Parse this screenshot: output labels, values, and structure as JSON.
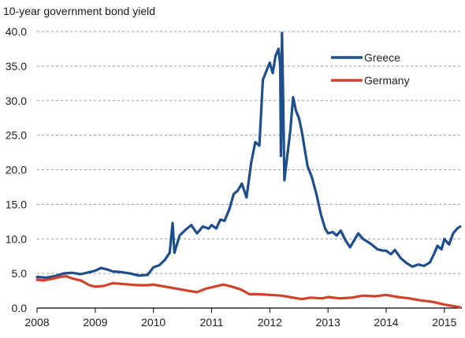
{
  "chart_data": {
    "type": "line",
    "title": "10-year government bond yield",
    "xlabel": "",
    "ylabel": "",
    "xlim": [
      2008.0,
      2015.3
    ],
    "ylim": [
      0,
      40
    ],
    "grid": true,
    "legend_position": "upper-right",
    "x_ticks": [
      "2008",
      "2009",
      "2010",
      "2011",
      "2012",
      "2013",
      "2014",
      "2015"
    ],
    "y_ticks": [
      "0.0",
      "5.0",
      "10.0",
      "15.0",
      "20.0",
      "25.0",
      "30.0",
      "35.0",
      "40.0"
    ],
    "series": [
      {
        "name": "Greece",
        "color": "#1f4e8c",
        "points": [
          [
            2008.0,
            4.5
          ],
          [
            2008.15,
            4.4
          ],
          [
            2008.3,
            4.6
          ],
          [
            2008.45,
            5.0
          ],
          [
            2008.6,
            5.1
          ],
          [
            2008.75,
            4.9
          ],
          [
            2008.9,
            5.2
          ],
          [
            2009.0,
            5.4
          ],
          [
            2009.1,
            5.8
          ],
          [
            2009.2,
            5.6
          ],
          [
            2009.3,
            5.3
          ],
          [
            2009.45,
            5.2
          ],
          [
            2009.6,
            5.0
          ],
          [
            2009.75,
            4.7
          ],
          [
            2009.9,
            4.8
          ],
          [
            2010.0,
            5.9
          ],
          [
            2010.1,
            6.2
          ],
          [
            2010.2,
            7.0
          ],
          [
            2010.28,
            8.0
          ],
          [
            2010.33,
            12.3
          ],
          [
            2010.36,
            8.0
          ],
          [
            2010.45,
            10.5
          ],
          [
            2010.55,
            11.3
          ],
          [
            2010.65,
            12.0
          ],
          [
            2010.75,
            10.8
          ],
          [
            2010.85,
            11.8
          ],
          [
            2010.95,
            11.5
          ],
          [
            2011.0,
            12.0
          ],
          [
            2011.08,
            11.5
          ],
          [
            2011.15,
            12.8
          ],
          [
            2011.22,
            12.6
          ],
          [
            2011.3,
            14.2
          ],
          [
            2011.38,
            16.5
          ],
          [
            2011.45,
            17.0
          ],
          [
            2011.52,
            18.0
          ],
          [
            2011.6,
            16.0
          ],
          [
            2011.68,
            21.0
          ],
          [
            2011.75,
            24.0
          ],
          [
            2011.82,
            23.5
          ],
          [
            2011.88,
            33.0
          ],
          [
            2011.95,
            34.5
          ],
          [
            2012.0,
            35.5
          ],
          [
            2012.05,
            34.0
          ],
          [
            2012.1,
            36.5
          ],
          [
            2012.15,
            37.5
          ],
          [
            2012.18,
            35.0
          ],
          [
            2012.19,
            22.0
          ],
          [
            2012.21,
            39.8
          ],
          [
            2012.23,
            30.0
          ],
          [
            2012.25,
            18.5
          ],
          [
            2012.3,
            22.0
          ],
          [
            2012.35,
            25.5
          ],
          [
            2012.4,
            30.5
          ],
          [
            2012.45,
            28.5
          ],
          [
            2012.5,
            27.5
          ],
          [
            2012.55,
            25.5
          ],
          [
            2012.6,
            23.0
          ],
          [
            2012.65,
            20.5
          ],
          [
            2012.72,
            19.0
          ],
          [
            2012.8,
            16.5
          ],
          [
            2012.88,
            13.5
          ],
          [
            2012.95,
            11.5
          ],
          [
            2013.0,
            10.8
          ],
          [
            2013.08,
            11.0
          ],
          [
            2013.15,
            10.5
          ],
          [
            2013.22,
            11.2
          ],
          [
            2013.3,
            9.8
          ],
          [
            2013.38,
            8.8
          ],
          [
            2013.45,
            9.8
          ],
          [
            2013.52,
            10.8
          ],
          [
            2013.6,
            10.0
          ],
          [
            2013.68,
            9.6
          ],
          [
            2013.75,
            9.2
          ],
          [
            2013.85,
            8.5
          ],
          [
            2013.95,
            8.3
          ],
          [
            2014.0,
            8.3
          ],
          [
            2014.08,
            7.8
          ],
          [
            2014.15,
            8.4
          ],
          [
            2014.25,
            7.2
          ],
          [
            2014.35,
            6.5
          ],
          [
            2014.45,
            6.0
          ],
          [
            2014.55,
            6.3
          ],
          [
            2014.65,
            6.1
          ],
          [
            2014.75,
            6.6
          ],
          [
            2014.82,
            7.8
          ],
          [
            2014.88,
            9.0
          ],
          [
            2014.95,
            8.5
          ],
          [
            2015.0,
            10.0
          ],
          [
            2015.08,
            9.2
          ],
          [
            2015.15,
            10.8
          ],
          [
            2015.22,
            11.5
          ],
          [
            2015.27,
            11.8
          ]
        ]
      },
      {
        "name": "Germany",
        "color": "#d0432a",
        "points": [
          [
            2008.0,
            4.1
          ],
          [
            2008.1,
            4.0
          ],
          [
            2008.25,
            4.2
          ],
          [
            2008.4,
            4.5
          ],
          [
            2008.5,
            4.6
          ],
          [
            2008.6,
            4.3
          ],
          [
            2008.75,
            4.0
          ],
          [
            2008.9,
            3.3
          ],
          [
            2009.0,
            3.1
          ],
          [
            2009.15,
            3.2
          ],
          [
            2009.3,
            3.6
          ],
          [
            2009.45,
            3.5
          ],
          [
            2009.6,
            3.4
          ],
          [
            2009.75,
            3.3
          ],
          [
            2009.9,
            3.3
          ],
          [
            2010.0,
            3.4
          ],
          [
            2010.2,
            3.1
          ],
          [
            2010.4,
            2.8
          ],
          [
            2010.6,
            2.5
          ],
          [
            2010.75,
            2.3
          ],
          [
            2010.9,
            2.8
          ],
          [
            2011.0,
            3.0
          ],
          [
            2011.2,
            3.4
          ],
          [
            2011.35,
            3.1
          ],
          [
            2011.5,
            2.7
          ],
          [
            2011.65,
            2.0
          ],
          [
            2011.8,
            2.0
          ],
          [
            2012.0,
            1.9
          ],
          [
            2012.2,
            1.8
          ],
          [
            2012.4,
            1.5
          ],
          [
            2012.55,
            1.3
          ],
          [
            2012.7,
            1.5
          ],
          [
            2012.9,
            1.4
          ],
          [
            2013.0,
            1.6
          ],
          [
            2013.2,
            1.4
          ],
          [
            2013.4,
            1.5
          ],
          [
            2013.6,
            1.8
          ],
          [
            2013.8,
            1.7
          ],
          [
            2014.0,
            1.9
          ],
          [
            2014.2,
            1.6
          ],
          [
            2014.4,
            1.4
          ],
          [
            2014.6,
            1.1
          ],
          [
            2014.8,
            0.9
          ],
          [
            2015.0,
            0.5
          ],
          [
            2015.15,
            0.3
          ],
          [
            2015.27,
            0.1
          ]
        ]
      }
    ]
  }
}
